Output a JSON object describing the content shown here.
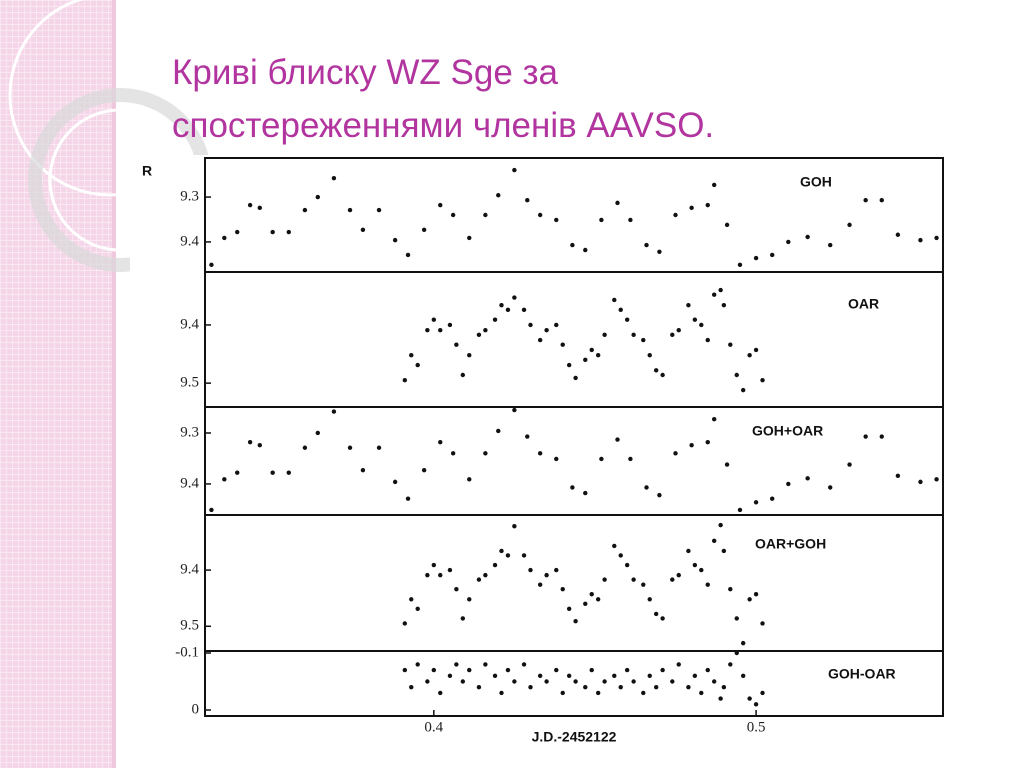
{
  "title_lines": [
    "Криві блиску WZ Sge за",
    "спостереженнями членів AAVSO."
  ],
  "chart_data": [
    {
      "type": "scatter",
      "y_label": "R",
      "y_inverted": true,
      "xlim": [
        0.329,
        0.558
      ],
      "ylim": [
        9.213,
        9.467
      ],
      "yticks": [
        9.3,
        9.4
      ],
      "series": [
        {
          "name": "GOH",
          "color": "#111111",
          "x": [
            0.331,
            0.335,
            0.339,
            0.343,
            0.346,
            0.35,
            0.355,
            0.36,
            0.364,
            0.369,
            0.374,
            0.378,
            0.383,
            0.388,
            0.392,
            0.397,
            0.402,
            0.406,
            0.411,
            0.416,
            0.42,
            0.425,
            0.429,
            0.433,
            0.438,
            0.443,
            0.447,
            0.452,
            0.457,
            0.461,
            0.466,
            0.47,
            0.475,
            0.48,
            0.485,
            0.487,
            0.491,
            0.495,
            0.5,
            0.505,
            0.51,
            0.516,
            0.523,
            0.529,
            0.534,
            0.539,
            0.544,
            0.551,
            0.556
          ],
          "values": [
            9.451,
            9.391,
            9.378,
            9.318,
            9.324,
            9.378,
            9.378,
            9.329,
            9.3,
            9.258,
            9.329,
            9.373,
            9.329,
            9.396,
            9.429,
            9.373,
            9.318,
            9.34,
            9.391,
            9.34,
            9.296,
            9.24,
            9.307,
            9.34,
            9.351,
            9.407,
            9.418,
            9.351,
            9.313,
            9.351,
            9.407,
            9.422,
            9.34,
            9.324,
            9.318,
            9.273,
            9.362,
            9.451,
            9.436,
            9.429,
            9.4,
            9.389,
            9.407,
            9.362,
            9.307,
            9.307,
            9.384,
            9.396,
            9.391
          ]
        }
      ]
    },
    {
      "type": "scatter",
      "y_inverted": true,
      "xlim": [
        0.329,
        0.558
      ],
      "ylim": [
        9.309,
        9.541
      ],
      "yticks": [
        9.4,
        9.5
      ],
      "series": [
        {
          "name": "OAR",
          "color": "#111111",
          "x": [
            0.391,
            0.393,
            0.395,
            0.398,
            0.4,
            0.402,
            0.405,
            0.407,
            0.409,
            0.411,
            0.414,
            0.416,
            0.419,
            0.421,
            0.423,
            0.425,
            0.428,
            0.43,
            0.433,
            0.435,
            0.438,
            0.44,
            0.442,
            0.444,
            0.447,
            0.449,
            0.451,
            0.453,
            0.456,
            0.458,
            0.46,
            0.462,
            0.465,
            0.467,
            0.469,
            0.471,
            0.474,
            0.476,
            0.479,
            0.481,
            0.483,
            0.485,
            0.487,
            0.489,
            0.49,
            0.492,
            0.494,
            0.496,
            0.498,
            0.5,
            0.502
          ],
          "values": [
            9.495,
            9.452,
            9.469,
            9.409,
            9.391,
            9.409,
            9.4,
            9.434,
            9.486,
            9.452,
            9.417,
            9.409,
            9.391,
            9.366,
            9.374,
            9.353,
            9.374,
            9.4,
            9.426,
            9.409,
            9.4,
            9.434,
            9.469,
            9.491,
            9.46,
            9.443,
            9.452,
            9.417,
            9.357,
            9.374,
            9.391,
            9.417,
            9.426,
            9.452,
            9.478,
            9.486,
            9.417,
            9.409,
            9.366,
            9.391,
            9.4,
            9.426,
            9.348,
            9.34,
            9.366,
            9.434,
            9.486,
            9.512,
            9.452,
            9.443,
            9.495
          ]
        }
      ]
    },
    {
      "type": "scatter",
      "y_inverted": true,
      "xlim": [
        0.329,
        0.558
      ],
      "ylim": [
        9.249,
        9.461
      ],
      "yticks": [
        9.3,
        9.4
      ],
      "series": [
        {
          "name": "GOH+OAR",
          "color": "#111111",
          "x": [
            0.331,
            0.335,
            0.339,
            0.343,
            0.346,
            0.35,
            0.355,
            0.36,
            0.364,
            0.369,
            0.374,
            0.378,
            0.383,
            0.388,
            0.392,
            0.397,
            0.402,
            0.406,
            0.411,
            0.416,
            0.42,
            0.425,
            0.429,
            0.433,
            0.438,
            0.443,
            0.447,
            0.452,
            0.457,
            0.461,
            0.466,
            0.47,
            0.475,
            0.48,
            0.485,
            0.487,
            0.491,
            0.495,
            0.5,
            0.505,
            0.51,
            0.516,
            0.523,
            0.529,
            0.534,
            0.539,
            0.544,
            0.551,
            0.556
          ],
          "values": [
            9.451,
            9.391,
            9.378,
            9.318,
            9.324,
            9.378,
            9.378,
            9.329,
            9.3,
            9.258,
            9.329,
            9.373,
            9.329,
            9.396,
            9.429,
            9.373,
            9.318,
            9.34,
            9.391,
            9.34,
            9.296,
            9.255,
            9.307,
            9.34,
            9.351,
            9.407,
            9.418,
            9.351,
            9.313,
            9.351,
            9.407,
            9.422,
            9.34,
            9.324,
            9.318,
            9.273,
            9.362,
            9.451,
            9.436,
            9.429,
            9.4,
            9.389,
            9.407,
            9.362,
            9.307,
            9.307,
            9.384,
            9.396,
            9.391
          ]
        }
      ]
    },
    {
      "type": "scatter",
      "y_inverted": true,
      "xlim": [
        0.329,
        0.558
      ],
      "ylim": [
        9.302,
        9.544
      ],
      "yticks": [
        9.4,
        9.5
      ],
      "series": [
        {
          "name": "OAR+GOH",
          "color": "#111111",
          "x": [
            0.391,
            0.393,
            0.395,
            0.398,
            0.4,
            0.402,
            0.405,
            0.407,
            0.409,
            0.411,
            0.414,
            0.416,
            0.419,
            0.421,
            0.423,
            0.425,
            0.428,
            0.43,
            0.433,
            0.435,
            0.438,
            0.44,
            0.442,
            0.444,
            0.447,
            0.449,
            0.451,
            0.453,
            0.456,
            0.458,
            0.46,
            0.462,
            0.465,
            0.467,
            0.469,
            0.471,
            0.474,
            0.476,
            0.479,
            0.481,
            0.483,
            0.485,
            0.487,
            0.489,
            0.49,
            0.492,
            0.494,
            0.496,
            0.498,
            0.5,
            0.502
          ],
          "values": [
            9.495,
            9.452,
            9.469,
            9.409,
            9.391,
            9.409,
            9.4,
            9.434,
            9.486,
            9.452,
            9.417,
            9.409,
            9.391,
            9.366,
            9.374,
            9.322,
            9.374,
            9.4,
            9.426,
            9.409,
            9.4,
            9.434,
            9.469,
            9.491,
            9.46,
            9.443,
            9.452,
            9.417,
            9.357,
            9.374,
            9.391,
            9.417,
            9.426,
            9.452,
            9.478,
            9.486,
            9.417,
            9.409,
            9.366,
            9.391,
            9.4,
            9.426,
            9.348,
            9.32,
            9.366,
            9.434,
            9.486,
            9.53,
            9.452,
            9.443,
            9.495
          ]
        }
      ]
    },
    {
      "type": "scatter",
      "y_inverted": true,
      "xlim": [
        0.329,
        0.558
      ],
      "ylim": [
        -0.1035,
        0.0105
      ],
      "yticks": [
        -0.1,
        0
      ],
      "xticks": [
        0.4,
        0.5
      ],
      "x_label": "J.D.-2452122",
      "series": [
        {
          "name": "GOH-OAR",
          "color": "#111111",
          "x": [
            0.391,
            0.393,
            0.395,
            0.398,
            0.4,
            0.402,
            0.405,
            0.407,
            0.409,
            0.411,
            0.414,
            0.416,
            0.419,
            0.421,
            0.423,
            0.425,
            0.428,
            0.43,
            0.433,
            0.435,
            0.438,
            0.44,
            0.442,
            0.444,
            0.447,
            0.449,
            0.451,
            0.453,
            0.456,
            0.458,
            0.46,
            0.462,
            0.465,
            0.467,
            0.469,
            0.471,
            0.474,
            0.476,
            0.479,
            0.481,
            0.483,
            0.485,
            0.487,
            0.489,
            0.49,
            0.492,
            0.494,
            0.496,
            0.498,
            0.5,
            0.502
          ],
          "values": [
            -0.07,
            -0.04,
            -0.08,
            -0.05,
            -0.07,
            -0.03,
            -0.06,
            -0.08,
            -0.05,
            -0.07,
            -0.04,
            -0.08,
            -0.06,
            -0.03,
            -0.07,
            -0.05,
            -0.08,
            -0.04,
            -0.06,
            -0.05,
            -0.07,
            -0.03,
            -0.06,
            -0.05,
            -0.04,
            -0.07,
            -0.03,
            -0.05,
            -0.06,
            -0.04,
            -0.07,
            -0.05,
            -0.03,
            -0.06,
            -0.04,
            -0.07,
            -0.05,
            -0.08,
            -0.04,
            -0.06,
            -0.03,
            -0.07,
            -0.05,
            -0.02,
            -0.04,
            -0.08,
            -0.1,
            -0.06,
            -0.02,
            -0.01,
            -0.03
          ]
        }
      ]
    }
  ]
}
